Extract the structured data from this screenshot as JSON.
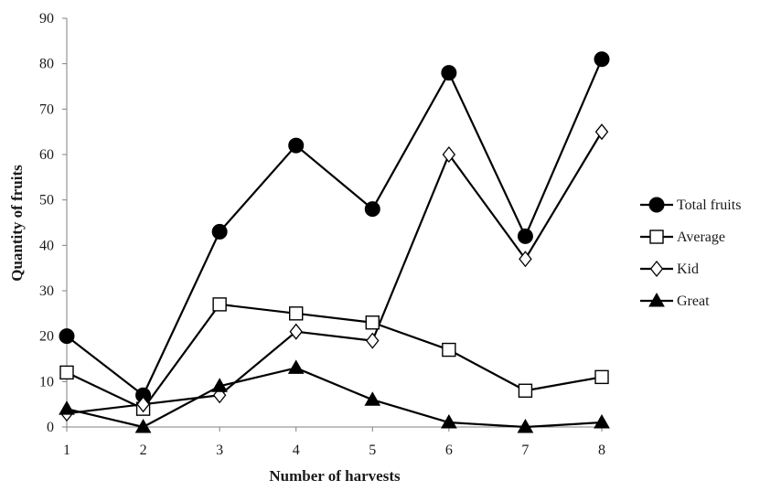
{
  "chart_data": {
    "type": "line",
    "title": "",
    "xlabel": "Number of harvests",
    "ylabel": "Quantity of fruits",
    "x": [
      1,
      2,
      3,
      4,
      5,
      6,
      7,
      8
    ],
    "xlim": [
      1,
      8
    ],
    "ylim": [
      0,
      90
    ],
    "yticks": [
      0,
      10,
      20,
      30,
      40,
      50,
      60,
      70,
      80,
      90
    ],
    "grid": false,
    "legend_position": "right",
    "series": [
      {
        "name": "Total fruits",
        "marker": "filled-circle",
        "values": [
          20,
          7,
          43,
          62,
          48,
          78,
          42,
          81
        ]
      },
      {
        "name": "Average",
        "marker": "open-square",
        "values": [
          12,
          4,
          27,
          25,
          23,
          17,
          8,
          11
        ]
      },
      {
        "name": "Kid",
        "marker": "open-diamond",
        "values": [
          3,
          5,
          7,
          21,
          19,
          60,
          37,
          65
        ]
      },
      {
        "name": "Great",
        "marker": "filled-triangle",
        "values": [
          4,
          0,
          9,
          13,
          6,
          1,
          0,
          1
        ]
      }
    ],
    "colors": {
      "line": "#000000",
      "marker_fill_open": "#ffffff",
      "axis": "#808080"
    }
  }
}
